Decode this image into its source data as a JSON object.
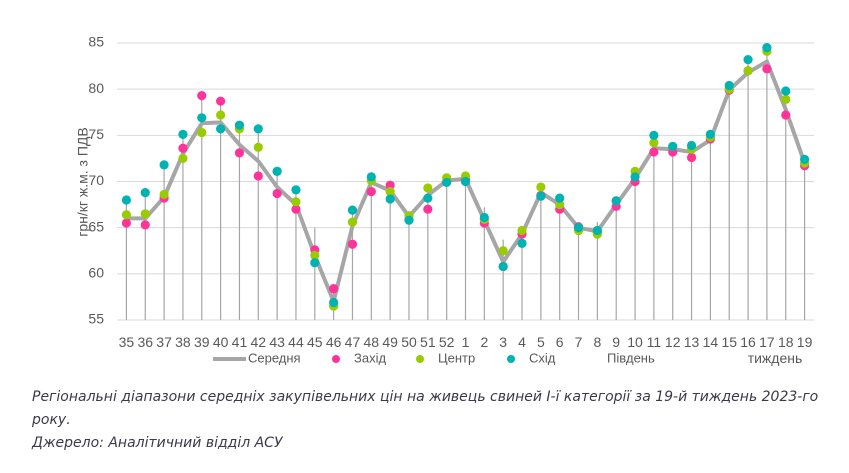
{
  "chart_data": {
    "type": "line",
    "title": "",
    "xlabel": "тиждень",
    "ylabel": "грн/кг ж.м. з ПДВ",
    "ylim": [
      55,
      85
    ],
    "yticks": [
      55,
      60,
      65,
      70,
      75,
      80,
      85
    ],
    "grid": true,
    "legend_position": "bottom",
    "categories": [
      "35",
      "36",
      "37",
      "38",
      "39",
      "40",
      "41",
      "42",
      "43",
      "44",
      "45",
      "46",
      "47",
      "48",
      "49",
      "50",
      "51",
      "52",
      "1",
      "2",
      "3",
      "4",
      "5",
      "6",
      "7",
      "8",
      "9",
      "10",
      "11",
      "12",
      "13",
      "14",
      "15",
      "16",
      "17",
      "18",
      "19"
    ],
    "series": [
      {
        "name": "Середня",
        "style": "line",
        "color": "#a6a6a6",
        "values": [
          66.0,
          66.0,
          68.3,
          73.0,
          76.3,
          76.4,
          74.0,
          72.2,
          69.4,
          67.5,
          62.0,
          57.0,
          65.2,
          69.9,
          69.0,
          66.2,
          68.5,
          70.1,
          70.3,
          65.8,
          61.3,
          64.3,
          68.8,
          67.5,
          65.0,
          64.6,
          67.5,
          70.3,
          73.6,
          73.5,
          73.2,
          74.5,
          79.9,
          81.8,
          83.0,
          77.8,
          72.0
        ]
      },
      {
        "name": "Захід",
        "style": "marker",
        "color": "#ff3399",
        "values": [
          65.5,
          65.3,
          68.2,
          73.6,
          79.3,
          78.7,
          73.1,
          70.6,
          68.7,
          67.0,
          62.6,
          58.4,
          63.2,
          68.9,
          69.6,
          65.9,
          67.0,
          70.0,
          70.2,
          65.5,
          60.8,
          64.3,
          68.5,
          67.0,
          65.1,
          64.5,
          67.3,
          70.0,
          73.2,
          73.2,
          72.6,
          74.6,
          79.9,
          82.0,
          82.2,
          77.2,
          71.7
        ]
      },
      {
        "name": "Центр",
        "style": "marker",
        "color": "#99cc00",
        "values": [
          66.4,
          66.5,
          68.6,
          72.5,
          75.3,
          77.2,
          75.7,
          73.7,
          71.1,
          67.8,
          62.0,
          56.5,
          65.6,
          70.1,
          68.9,
          66.3,
          69.3,
          70.4,
          70.6,
          65.9,
          62.5,
          64.7,
          69.4,
          67.5,
          64.7,
          64.3,
          67.9,
          71.1,
          74.2,
          73.8,
          73.5,
          74.8,
          80.0,
          82.0,
          84.1,
          78.9,
          72.0
        ]
      },
      {
        "name": "Схід",
        "style": "marker",
        "color": "#00b3b3",
        "values": [
          68.0,
          68.8,
          71.8,
          75.1,
          76.9,
          75.7,
          76.1,
          75.7,
          71.1,
          69.1,
          61.2,
          56.9,
          66.9,
          70.5,
          68.1,
          65.8,
          68.2,
          69.9,
          70.0,
          66.1,
          60.8,
          63.3,
          68.4,
          68.2,
          65.0,
          64.7,
          67.9,
          70.5,
          75.0,
          73.8,
          73.9,
          75.1,
          80.4,
          83.2,
          84.5,
          79.8,
          72.4
        ]
      },
      {
        "name": "Південь",
        "style": "dropline",
        "color": "#a6a6a6",
        "values": [
          68.0,
          68.8,
          71.8,
          75.1,
          79.3,
          78.7,
          76.1,
          75.7,
          71.1,
          69.1,
          65.0,
          58.4,
          66.9,
          70.5,
          69.6,
          66.3,
          69.3,
          70.4,
          70.6,
          67.2,
          63.7,
          64.7,
          69.4,
          68.2,
          65.2,
          65.6,
          67.9,
          71.1,
          75.0,
          73.8,
          73.9,
          75.1,
          80.4,
          83.2,
          84.5,
          79.8,
          72.4
        ]
      }
    ]
  },
  "legend": {
    "items": [
      {
        "label": "Середня",
        "kind": "line",
        "color": "#a6a6a6"
      },
      {
        "label": "Захід",
        "kind": "dot",
        "color": "#ff3399"
      },
      {
        "label": "Центр",
        "kind": "dot",
        "color": "#99cc00"
      },
      {
        "label": "Схід",
        "kind": "dot",
        "color": "#00b3b3"
      },
      {
        "label": "Південь",
        "kind": "none",
        "color": "#a6a6a6"
      }
    ]
  },
  "caption": {
    "line1": "Регіональні діапазони середніх закупівельних цін на живець свиней І-ї категорії за 19-й тиждень 2023-го року.",
    "line2": "Джерело: Аналітичний відділ АСУ"
  }
}
